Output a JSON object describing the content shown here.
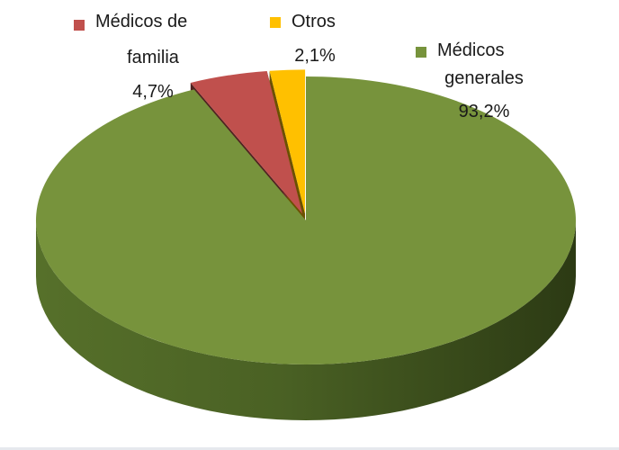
{
  "chart_data": {
    "type": "pie",
    "style": "3d-exploded",
    "title": "",
    "series": [
      {
        "label_lines": [
          "Médicos",
          "generales"
        ],
        "value_label": "93,2%",
        "value": 93.2,
        "color": "#77933c"
      },
      {
        "label_lines": [
          "Médicos de",
          "familia"
        ],
        "value_label": "4,7%",
        "value": 4.7,
        "color": "#c0504d"
      },
      {
        "label_lines": [
          "Otros"
        ],
        "value_label": "2,1%",
        "value": 2.1,
        "color": "#ffc000"
      }
    ],
    "legend": "none"
  }
}
